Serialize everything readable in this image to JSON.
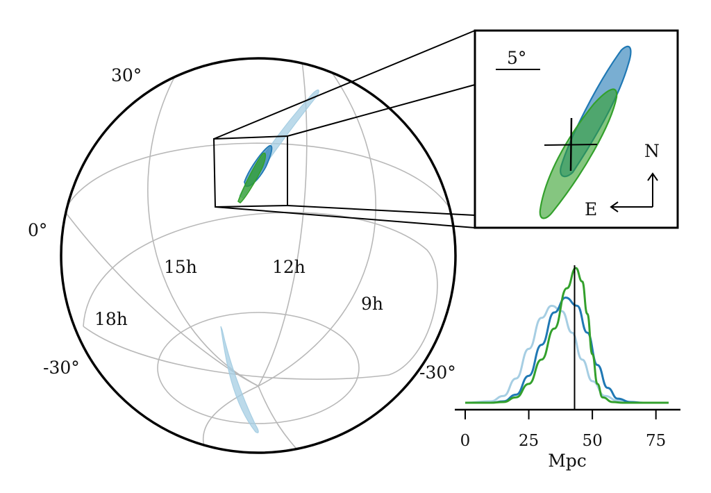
{
  "colors": {
    "light_blue": "#a6cee3",
    "dark_blue": "#1f78b4",
    "green": "#33a02c",
    "grid": "#b8b8b8",
    "frame": "#000000"
  },
  "sky_map": {
    "projection": "orthographic globe",
    "dec_labels": {
      "top": "30°",
      "equator": "0°",
      "south_left": "-30°",
      "south_right": "-30°"
    },
    "ra_labels": [
      "15h",
      "12h",
      "9h",
      "18h"
    ]
  },
  "inset": {
    "scale_label": "5°",
    "north_label": "N",
    "east_label": "E"
  },
  "chart_data": {
    "type": "line",
    "title": "",
    "xlabel": "Mpc",
    "ylabel": "",
    "xlim": [
      0,
      80
    ],
    "xticks": [
      "0",
      "25",
      "50",
      "75"
    ],
    "reference_line_x": 43,
    "series": [
      {
        "color": "#a6cee3",
        "peak_x": 34,
        "peak_y": 0.72,
        "x": [
          0,
          10,
          15,
          20,
          25,
          30,
          34,
          38,
          42,
          46,
          50,
          55,
          60,
          65,
          70,
          80
        ],
        "y": [
          0.0,
          0.01,
          0.05,
          0.18,
          0.4,
          0.63,
          0.72,
          0.68,
          0.52,
          0.32,
          0.16,
          0.05,
          0.015,
          0.0,
          0.0,
          0.0
        ]
      },
      {
        "color": "#1f78b4",
        "peak_x": 39.5,
        "peak_y": 0.78,
        "x": [
          0,
          10,
          15,
          20,
          25,
          30,
          35,
          39.5,
          44,
          48,
          52,
          56,
          60,
          65,
          70,
          80
        ],
        "y": [
          0.0,
          0.0,
          0.01,
          0.06,
          0.2,
          0.43,
          0.67,
          0.78,
          0.72,
          0.52,
          0.28,
          0.11,
          0.03,
          0.005,
          0.0,
          0.0
        ]
      },
      {
        "color": "#33a02c",
        "peak_x": 43.5,
        "peak_y": 1.0,
        "x": [
          0,
          10,
          15,
          20,
          25,
          30,
          35,
          40,
          43.5,
          46,
          48,
          50,
          52,
          54,
          58,
          62,
          70,
          80
        ],
        "y": [
          0.0,
          0.0,
          0.005,
          0.04,
          0.14,
          0.32,
          0.55,
          0.85,
          1.0,
          0.9,
          0.66,
          0.36,
          0.14,
          0.04,
          0.005,
          0.0,
          0.0,
          0.0
        ]
      }
    ]
  }
}
